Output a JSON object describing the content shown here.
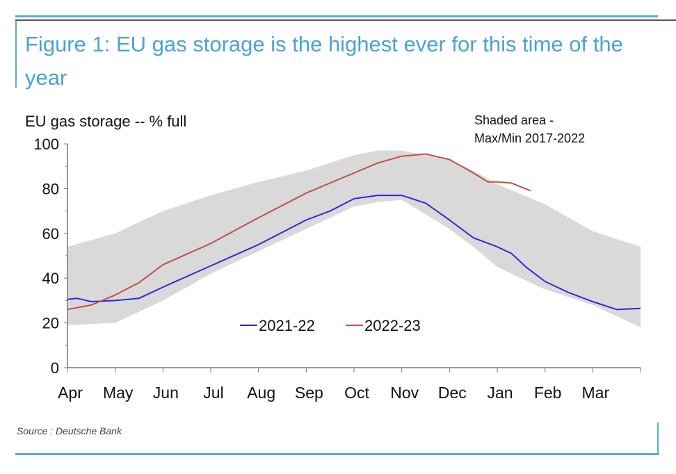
{
  "figure": {
    "title": "Figure 1: EU gas storage is the highest ever for this time of the year",
    "source": "Source : Deutsche Bank"
  },
  "chart_data": {
    "type": "line",
    "title": "Figure 1: EU gas storage is the highest ever for this time of the year",
    "ylabel": "EU gas storage -- % full",
    "annotation": [
      "Shaded area -",
      "Max/Min 2017-2022"
    ],
    "ylim": [
      0,
      100
    ],
    "yticks": [
      0,
      20,
      40,
      60,
      80,
      100
    ],
    "xticks": [
      "Apr",
      "May",
      "Jun",
      "Jul",
      "Aug",
      "Sep",
      "Oct",
      "Nov",
      "Dec",
      "Jan",
      "Feb",
      "Mar"
    ],
    "x_unit": "months since start of April",
    "xlim": [
      0,
      12
    ],
    "band": {
      "name": "Max/Min 2017-2022",
      "color": "#d9d9d9",
      "x": [
        0,
        1,
        2,
        3,
        4,
        5,
        6,
        6.5,
        7,
        8,
        8.5,
        9,
        10,
        11,
        12
      ],
      "max": [
        54,
        60,
        70,
        77,
        83,
        88,
        95,
        97,
        97,
        93,
        88,
        82,
        73,
        61,
        54
      ],
      "min": [
        19,
        20,
        30,
        42,
        52,
        62,
        72,
        74,
        75,
        62,
        54,
        45,
        35,
        28,
        18
      ]
    },
    "series": [
      {
        "name": "2021-22",
        "color": "#2b2bd6",
        "x": [
          0,
          0.2,
          0.5,
          1,
          1.5,
          2,
          3,
          4,
          5,
          5.5,
          6,
          6.5,
          7,
          7.5,
          8,
          8.5,
          9,
          9.3,
          9.6,
          10,
          10.5,
          11,
          11.5,
          12
        ],
        "values": [
          30.5,
          31,
          29.5,
          30,
          31,
          36,
          45.5,
          55,
          66,
          70,
          75.5,
          77,
          77,
          73.5,
          66,
          58,
          54,
          51,
          45,
          38.5,
          33.5,
          29.5,
          26,
          26.5
        ]
      },
      {
        "name": "2022-23",
        "color": "#c0504d",
        "x": [
          0,
          0.5,
          1,
          1.5,
          2,
          3,
          4,
          5,
          6,
          6.5,
          7,
          7.5,
          8,
          8.5,
          8.8,
          9,
          9.3,
          9.7
        ],
        "values": [
          26,
          28,
          32.5,
          38,
          46,
          55.5,
          67,
          78,
          87,
          91.5,
          94.5,
          95.5,
          93,
          87,
          83,
          83,
          82.5,
          79
        ]
      }
    ],
    "legend": "center-bottom"
  }
}
